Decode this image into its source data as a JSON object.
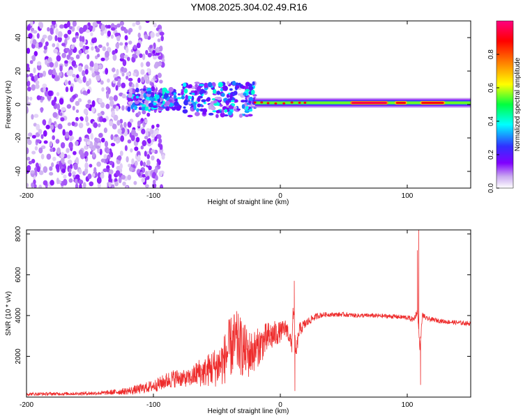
{
  "title": "YM08.2025.304.02.49.R16",
  "chart_data": [
    {
      "type": "heatmap",
      "title": "YM08.2025.304.02.49.R16",
      "xlabel": "Height of straight line (km)",
      "ylabel": "Frequency (Hz)",
      "xlim": [
        -200,
        150
      ],
      "ylim": [
        -50,
        50
      ],
      "xticks": [
        -200,
        -100,
        0,
        100
      ],
      "xtick_labels": [
        "-200",
        "-100",
        "0",
        "100"
      ],
      "yticks": [
        -40,
        -20,
        0,
        20,
        40
      ],
      "ytick_labels": [
        "-40",
        "-20",
        "0",
        "20",
        "40"
      ],
      "colorbar": {
        "label": "Normalized spectral amplitude",
        "range": [
          0,
          1
        ],
        "ticks": [
          0.0,
          0.2,
          0.4,
          0.6,
          0.8
        ],
        "tick_labels": [
          "0.0",
          "0.2",
          "0.4",
          "0.6",
          "0.8"
        ],
        "colors": [
          "#ffffff",
          "#c9a8f0",
          "#8000ff",
          "#3030ff",
          "#00ffff",
          "#00ff40",
          "#ffff00",
          "#ff8000",
          "#ff0000",
          "#ff0080"
        ]
      },
      "regions": [
        {
          "name": "noise",
          "x_range": [
            -200,
            -100
          ],
          "freq_range": [
            -50,
            50
          ],
          "amplitude": 0.12
        },
        {
          "name": "scattered-band",
          "x_range": [
            -120,
            -20
          ],
          "freq_range": [
            -8,
            14
          ],
          "amplitude": 0.3
        },
        {
          "name": "tone",
          "x_range": [
            -20,
            150
          ],
          "freq_center": 1,
          "amplitude": 0.6
        },
        {
          "name": "tone-peak",
          "x_range": [
            55,
            85
          ],
          "freq_center": 1,
          "amplitude": 0.95
        },
        {
          "name": "tone-peak",
          "x_range": [
            90,
            100
          ],
          "freq_center": 1,
          "amplitude": 0.9
        },
        {
          "name": "tone-peak",
          "x_range": [
            110,
            130
          ],
          "freq_center": 1,
          "amplitude": 0.9
        }
      ]
    },
    {
      "type": "line",
      "xlabel": "Height of straight line (km)",
      "ylabel": "SNR (10 * v/v)",
      "xlim": [
        -200,
        150
      ],
      "ylim": [
        0,
        8200
      ],
      "xticks": [
        -200,
        -100,
        0,
        100
      ],
      "xtick_labels": [
        "-200",
        "-100",
        "0",
        "100"
      ],
      "yticks": [
        2000,
        4000,
        6000,
        8000
      ],
      "ytick_labels": [
        "2000",
        "4000",
        "6000",
        "8000"
      ],
      "color": "#ee2c2c",
      "series": [
        {
          "name": "SNR",
          "x": [
            -200,
            -180,
            -160,
            -140,
            -120,
            -110,
            -100,
            -95,
            -90,
            -85,
            -80,
            -75,
            -70,
            -65,
            -60,
            -55,
            -50,
            -45,
            -40,
            -35,
            -30,
            -25,
            -20,
            -15,
            -10,
            -5,
            0,
            5,
            9,
            10,
            11,
            12,
            15,
            20,
            25,
            30,
            35,
            40,
            50,
            60,
            70,
            80,
            90,
            100,
            105,
            108,
            110,
            112,
            115,
            120,
            130,
            140,
            150
          ],
          "values": [
            150,
            160,
            170,
            200,
            300,
            400,
            550,
            650,
            800,
            900,
            950,
            900,
            950,
            1200,
            1200,
            1400,
            1500,
            1750,
            2400,
            2700,
            2400,
            2100,
            2300,
            2600,
            2900,
            3050,
            3200,
            3400,
            2500,
            4200,
            3700,
            2000,
            3300,
            3600,
            3850,
            4000,
            4050,
            4050,
            4050,
            4000,
            4000,
            3980,
            3950,
            3900,
            3800,
            4200,
            2400,
            4050,
            3850,
            3800,
            3700,
            3650,
            3600
          ],
          "noise_amplitude": [
            80,
            80,
            80,
            100,
            180,
            250,
            300,
            350,
            400,
            450,
            450,
            400,
            450,
            700,
            700,
            900,
            1000,
            1200,
            1500,
            1600,
            1400,
            1200,
            1000,
            900,
            800,
            700,
            500,
            450,
            400,
            400,
            400,
            400,
            350,
            250,
            180,
            150,
            120,
            110,
            110,
            110,
            110,
            110,
            110,
            120,
            150,
            150,
            150,
            150,
            120,
            110,
            110,
            110,
            110
          ],
          "spikes": [
            {
              "x": 11,
              "value": 5700
            },
            {
              "x": 11.5,
              "value": 300
            },
            {
              "x": 109,
              "value": 8200
            },
            {
              "x": 110.5,
              "value": 600
            },
            {
              "x": 108,
              "value": 7200
            }
          ]
        }
      ]
    }
  ]
}
